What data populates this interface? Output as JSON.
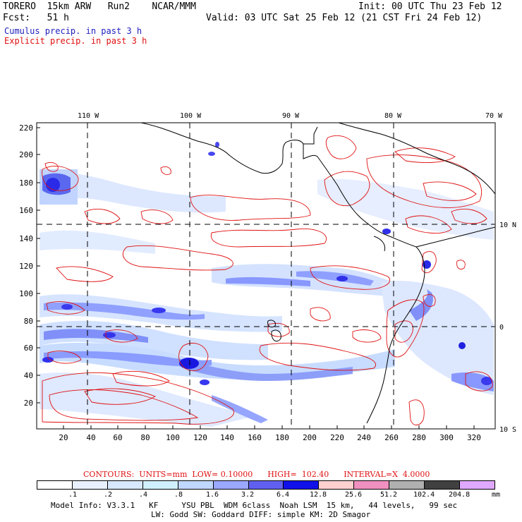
{
  "header": {
    "line1_left": "TORERO  15km ARW   Run2    NCAR/MMM",
    "line1_right": "Init: 00 UTC Thu 23 Feb 12",
    "line2_left": "Fcst:   51 h",
    "line2_right": "Valid: 03 UTC Sat 25 Feb 12 (21 CST Fri 24 Feb 12)",
    "cumulus_label": "Cumulus precip. in past 3 h",
    "explicit_label": "Explicit precip. in past 3 h"
  },
  "map": {
    "top_lon_labels": [
      "110 W",
      "100 W",
      "90 W",
      "80 W",
      "70 W"
    ],
    "right_lat_labels": [
      "10 N",
      "0",
      "10 S"
    ],
    "y_ticks": [
      "220",
      "200",
      "180",
      "160",
      "140",
      "120",
      "100",
      "80",
      "60",
      "40",
      "20"
    ],
    "x_ticks": [
      "20",
      "40",
      "60",
      "80",
      "100",
      "120",
      "140",
      "160",
      "180",
      "200",
      "220",
      "240",
      "260",
      "280",
      "300",
      "320"
    ]
  },
  "contours_note": {
    "label": "CONTOURS:  UNITS=mm  LOW= 0.10000      HIGH=  102.40      INTERVAL=X  4.0000"
  },
  "legend": {
    "values": [
      ".1",
      ".2",
      ".4",
      ".8",
      "1.6",
      "3.2",
      "6.4",
      "12.8",
      "25.6",
      "51.2",
      "102.4",
      "204.8"
    ],
    "unit": "mm",
    "colors": [
      "#ffffff",
      "#e8f0ff",
      "#d8e8ff",
      "#d0f0ff",
      "#c0d8ff",
      "#9aa8ff",
      "#6060f0",
      "#1010e8",
      "#ffd0d0",
      "#f090c0",
      "#b0b0b0",
      "#404040",
      "#e0a8ff"
    ]
  },
  "footer": {
    "line1": "Model Info: V3.3.1   KF     YSU PBL  WDM 6class  Noah LSM  15 km,   44 levels,   99 sec",
    "line2": "LW: Godd SW: Goddard DIFF: simple KM: 2D Smagor"
  }
}
